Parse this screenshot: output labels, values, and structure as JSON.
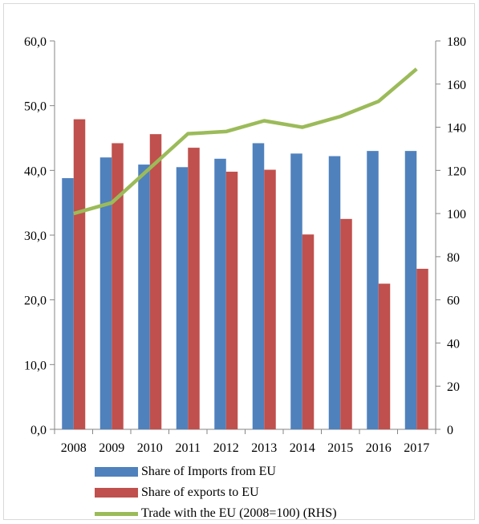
{
  "chart_data": {
    "type": "bar",
    "categories": [
      "2008",
      "2009",
      "2010",
      "2011",
      "2012",
      "2013",
      "2014",
      "2015",
      "2016",
      "2017"
    ],
    "series": [
      {
        "name": "Share of Imports from EU",
        "kind": "bar",
        "axis": "left",
        "color": "#4f81bd",
        "values": [
          38.8,
          42.0,
          40.9,
          40.5,
          41.8,
          44.2,
          42.6,
          42.2,
          43.0,
          43.0
        ]
      },
      {
        "name": "Share of exports to EU",
        "kind": "bar",
        "axis": "left",
        "color": "#c0504d",
        "values": [
          47.9,
          44.2,
          45.6,
          43.5,
          39.8,
          40.1,
          30.1,
          32.5,
          22.5,
          24.8
        ]
      },
      {
        "name": "Trade with the EU (2008=100) (RHS)",
        "kind": "line",
        "axis": "right",
        "color": "#9bbb59",
        "values": [
          100,
          105,
          121,
          137,
          138,
          143,
          140,
          145,
          152,
          167
        ]
      }
    ],
    "y_left": {
      "min": 0,
      "max": 60,
      "step": 10,
      "tick_labels": [
        "0,0",
        "10,0",
        "20,0",
        "30,0",
        "40,0",
        "50,0",
        "60,0"
      ]
    },
    "y_right": {
      "min": 0,
      "max": 180,
      "step": 20,
      "tick_labels": [
        "0",
        "20",
        "40",
        "60",
        "80",
        "100",
        "120",
        "140",
        "160",
        "180"
      ]
    },
    "grid": false,
    "legend_position": "bottom"
  }
}
